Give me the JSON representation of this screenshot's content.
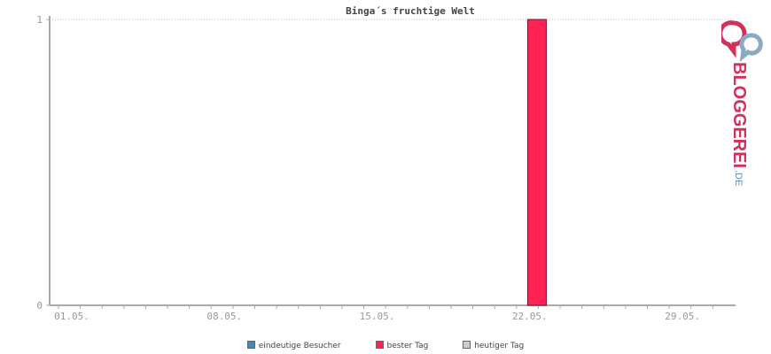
{
  "chart_data": {
    "type": "bar",
    "title": "Binga´s fruchtige Welt",
    "x_tick_labels": [
      "01.05.",
      "08.05.",
      "15.05.",
      "22.05.",
      "29.05."
    ],
    "days": 31,
    "ylim": [
      0,
      1
    ],
    "y_ticks": [
      "0",
      "1"
    ],
    "grid": "dotted line at top value",
    "series": [
      {
        "name": "eindeutige Besucher",
        "color": "#4a86b0",
        "values": []
      },
      {
        "name": "bester Tag",
        "color": "#ff2255",
        "values": [
          {
            "day": "23.05.",
            "value": 1
          }
        ]
      },
      {
        "name": "heutiger Tag",
        "color": "#cccccc",
        "values": []
      }
    ]
  },
  "legend": {
    "items": [
      {
        "label": "eindeutige Besucher",
        "color": "#4a86b0"
      },
      {
        "label": "bester Tag",
        "color": "#ff2255"
      },
      {
        "label": "heutiger Tag",
        "color": "#cccccc"
      }
    ]
  },
  "logo": {
    "wordmark": "BLOGGEREI",
    "suffix": ".DE",
    "colors": {
      "primary": "#d0305a",
      "secondary": "#5b8cb0"
    }
  }
}
